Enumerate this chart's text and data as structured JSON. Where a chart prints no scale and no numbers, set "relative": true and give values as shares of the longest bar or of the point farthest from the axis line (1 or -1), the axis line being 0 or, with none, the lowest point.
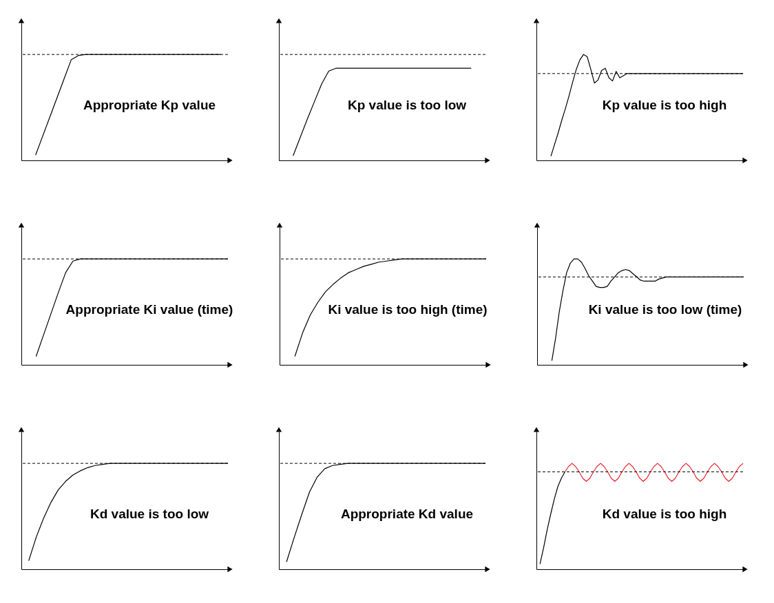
{
  "chart_data": [
    {
      "type": "line",
      "relative": true,
      "annotations": [
        "Appropriate Kp value"
      ],
      "ref_lines": [
        {
          "axis": "y",
          "value": 1,
          "line_style": "dashed",
          "color": "#000000"
        }
      ],
      "categories": [
        null,
        null,
        null,
        null,
        null,
        null,
        null,
        null,
        null,
        null,
        null,
        null,
        null,
        null,
        null,
        null,
        null,
        null,
        null,
        null,
        null,
        null,
        null,
        null,
        null,
        null,
        null,
        null,
        null,
        null
      ],
      "series": [
        {
          "color": "#000000",
          "values": [
            null,
            null,
            0.05,
            0.23,
            0.41,
            0.59,
            0.77,
            0.95,
            0.99,
            1,
            1,
            1,
            1,
            1,
            1,
            1,
            1,
            1,
            1,
            1,
            1,
            1,
            1,
            1,
            1,
            1,
            1,
            1,
            1,
            null
          ]
        }
      ]
    },
    {
      "type": "line",
      "relative": true,
      "annotations": [
        "Kp value is too low"
      ],
      "ref_lines": [
        {
          "axis": "y",
          "value": 1.15,
          "line_style": "dashed",
          "color": "#000000"
        }
      ],
      "categories": [
        null,
        null,
        null,
        null,
        null,
        null,
        null,
        null,
        null,
        null,
        null,
        null,
        null,
        null,
        null,
        null,
        null,
        null,
        null,
        null,
        null,
        null,
        null,
        null,
        null,
        null,
        null,
        null,
        null,
        null
      ],
      "series": [
        {
          "color": "#000000",
          "values": [
            null,
            null,
            0.05,
            0.25,
            0.45,
            0.64,
            0.83,
            0.97,
            1,
            1,
            1,
            1,
            1,
            1,
            1,
            1,
            1,
            1,
            1,
            1,
            1,
            1,
            1,
            1,
            1,
            1,
            1,
            1,
            null,
            null
          ]
        }
      ]
    },
    {
      "type": "line",
      "relative": true,
      "annotations": [
        "Kp value is too high"
      ],
      "ref_lines": [
        {
          "axis": "y",
          "value": 0.82,
          "line_style": "dashed",
          "color": "#000000"
        }
      ],
      "categories": [
        null,
        null,
        null,
        null,
        null,
        null,
        null,
        null,
        null,
        null,
        null,
        null,
        null,
        null,
        null,
        null,
        null,
        null,
        null,
        null,
        null,
        null,
        null,
        null,
        null,
        null,
        null,
        null,
        null,
        null,
        null,
        null,
        null,
        null,
        null,
        null,
        null,
        null,
        null,
        null,
        null,
        null,
        null,
        null,
        null,
        null,
        null,
        null,
        null,
        null,
        null,
        null,
        null,
        null,
        null,
        null,
        null,
        null
      ],
      "series": [
        {
          "color": "#000000",
          "values": [
            null,
            null,
            null,
            null,
            0.04,
            0.15,
            0.26,
            0.38,
            0.49,
            0.61,
            0.74,
            0.86,
            0.95,
            1,
            0.98,
            0.86,
            0.73,
            0.76,
            0.85,
            0.87,
            0.78,
            0.75,
            0.84,
            0.78,
            0.8,
            0.82,
            0.82,
            0.82,
            0.82,
            0.82,
            0.82,
            0.82,
            0.82,
            0.82,
            0.82,
            0.82,
            0.82,
            0.82,
            0.82,
            0.82,
            0.82,
            0.82,
            0.82,
            0.82,
            0.82,
            0.82,
            0.82,
            0.82,
            0.82,
            0.82,
            0.82,
            0.82,
            0.82,
            0.82,
            0.82,
            0.82,
            0.82,
            0.82
          ]
        }
      ]
    },
    {
      "type": "line",
      "relative": true,
      "annotations": [
        "Appropriate Ki value (time)"
      ],
      "ref_lines": [
        {
          "axis": "y",
          "value": 1,
          "line_style": "dashed",
          "color": "#000000"
        }
      ],
      "categories": [
        null,
        null,
        null,
        null,
        null,
        null,
        null,
        null,
        null,
        null,
        null,
        null,
        null,
        null,
        null,
        null,
        null,
        null,
        null,
        null,
        null,
        null,
        null,
        null,
        null,
        null,
        null,
        null,
        null
      ],
      "series": [
        {
          "color": "#000000",
          "values": [
            null,
            null,
            0.08,
            0.28,
            0.48,
            0.68,
            0.87,
            0.98,
            1,
            1,
            1,
            1,
            1,
            1,
            1,
            1,
            1,
            1,
            1,
            1,
            1,
            1,
            1,
            1,
            1,
            1,
            1,
            1,
            1
          ]
        }
      ]
    },
    {
      "type": "line",
      "relative": true,
      "annotations": [
        "Ki value is too high (time)"
      ],
      "ref_lines": [
        {
          "axis": "y",
          "value": 1,
          "line_style": "dashed",
          "color": "#000000"
        }
      ],
      "categories": [
        null,
        null,
        null,
        null,
        null,
        null,
        null,
        null,
        null,
        null,
        null,
        null,
        null,
        null,
        null,
        null,
        null,
        null,
        null,
        null,
        null,
        null,
        null,
        null,
        null,
        null,
        null,
        null
      ],
      "series": [
        {
          "color": "#000000",
          "values": [
            null,
            null,
            0.08,
            0.3,
            0.47,
            0.59,
            0.69,
            0.76,
            0.82,
            0.87,
            0.9,
            0.93,
            0.95,
            0.97,
            0.98,
            0.99,
            1,
            1,
            1,
            1,
            1,
            1,
            1,
            1,
            1,
            1,
            1,
            1
          ]
        }
      ]
    },
    {
      "type": "line",
      "relative": true,
      "annotations": [
        "Ki value is too low (time)"
      ],
      "ref_lines": [
        {
          "axis": "y",
          "value": 0.83,
          "line_style": "dashed",
          "color": "#000000"
        }
      ],
      "categories": [
        null,
        null,
        null,
        null,
        null,
        null,
        null,
        null,
        null,
        null,
        null,
        null,
        null,
        null,
        null,
        null,
        null,
        null,
        null,
        null,
        null,
        null,
        null,
        null,
        null,
        null,
        null,
        null,
        null,
        null,
        null,
        null,
        null,
        null,
        null,
        null,
        null,
        null,
        null,
        null,
        null,
        null,
        null,
        null,
        null,
        null,
        null,
        null,
        null,
        null,
        null,
        null,
        null,
        null,
        null,
        null,
        null
      ],
      "series": [
        {
          "color": "#000000",
          "values": [
            null,
            null,
            null,
            null,
            0.04,
            0.25,
            0.5,
            0.7,
            0.87,
            0.96,
            1,
            1,
            0.97,
            0.91,
            0.84,
            0.79,
            0.74,
            0.73,
            0.73,
            0.74,
            0.79,
            0.83,
            0.87,
            0.89,
            0.9,
            0.89,
            0.86,
            0.83,
            0.8,
            0.79,
            0.79,
            0.79,
            0.79,
            0.81,
            0.82,
            0.83,
            0.83,
            0.83,
            0.83,
            0.83,
            0.83,
            0.83,
            0.83,
            0.83,
            0.83,
            0.83,
            0.83,
            0.83,
            0.83,
            0.83,
            0.83,
            0.83,
            0.83,
            0.83,
            0.83,
            0.83,
            0.83
          ]
        }
      ]
    },
    {
      "type": "line",
      "relative": true,
      "annotations": [
        "Kd value is too low"
      ],
      "ref_lines": [
        {
          "axis": "y",
          "value": 1,
          "line_style": "dashed",
          "color": "#000000"
        }
      ],
      "categories": [
        null,
        null,
        null,
        null,
        null,
        null,
        null,
        null,
        null,
        null,
        null,
        null,
        null,
        null,
        null,
        null,
        null,
        null,
        null,
        null,
        null,
        null,
        null,
        null,
        null,
        null,
        null,
        null,
        null
      ],
      "series": [
        {
          "color": "#000000",
          "values": [
            null,
            0.08,
            0.3,
            0.48,
            0.63,
            0.75,
            0.83,
            0.89,
            0.93,
            0.96,
            0.98,
            0.99,
            1,
            1,
            1,
            1,
            1,
            1,
            1,
            1,
            1,
            1,
            1,
            1,
            1,
            1,
            1,
            1,
            1
          ]
        }
      ]
    },
    {
      "type": "line",
      "relative": true,
      "annotations": [
        "Appropriate Kd value"
      ],
      "ref_lines": [
        {
          "axis": "y",
          "value": 1,
          "line_style": "dashed",
          "color": "#000000"
        }
      ],
      "categories": [
        null,
        null,
        null,
        null,
        null,
        null,
        null,
        null,
        null,
        null,
        null,
        null,
        null,
        null,
        null,
        null,
        null,
        null,
        null,
        null,
        null,
        null,
        null,
        null,
        null,
        null,
        null,
        null
      ],
      "series": [
        {
          "color": "#000000",
          "values": [
            null,
            0.07,
            0.3,
            0.52,
            0.73,
            0.87,
            0.95,
            0.98,
            0.99,
            1,
            1,
            1,
            1,
            1,
            1,
            1,
            1,
            1,
            1,
            1,
            1,
            1,
            1,
            1,
            1,
            1,
            1,
            1
          ]
        }
      ]
    },
    {
      "type": "line",
      "relative": true,
      "annotations": [
        "Kd value is too high"
      ],
      "ref_lines": [
        {
          "axis": "y",
          "value": 0.92,
          "line_style": "dashed",
          "color": "#000000"
        }
      ],
      "categories": [
        null,
        null,
        null,
        null,
        null,
        null,
        null,
        null,
        null,
        null,
        null,
        null,
        null,
        null,
        null,
        null,
        null,
        null,
        null,
        null,
        null,
        null,
        null,
        null,
        null,
        null,
        null,
        null,
        null,
        null,
        null,
        null,
        null,
        null,
        null,
        null,
        null,
        null,
        null,
        null,
        null,
        null,
        null,
        null,
        null,
        null,
        null,
        null,
        null,
        null,
        null,
        null,
        null,
        null,
        null,
        null,
        null,
        null,
        null
      ],
      "series": [
        {
          "color": "#000000",
          "values": [
            null,
            0.05,
            0.2,
            0.37,
            0.52,
            0.66,
            0.78,
            0.86,
            0.92,
            null,
            null,
            null,
            null,
            null,
            null,
            null,
            null,
            null,
            null,
            null,
            null,
            null,
            null,
            null,
            null,
            null,
            null,
            null,
            null,
            null,
            null,
            null,
            null,
            null,
            null,
            null,
            null,
            null,
            null,
            null,
            null,
            null,
            null,
            null,
            null,
            null,
            null,
            null,
            null,
            null,
            null,
            null,
            null,
            null,
            null,
            null,
            null,
            null,
            null
          ]
        },
        {
          "color": "#e8202a",
          "values": [
            null,
            null,
            null,
            null,
            null,
            null,
            null,
            null,
            0.92,
            0.97,
            1,
            0.97,
            0.92,
            0.86,
            0.83,
            0.86,
            0.92,
            0.97,
            1,
            0.97,
            0.92,
            0.86,
            0.83,
            0.86,
            0.92,
            0.97,
            1,
            0.97,
            0.92,
            0.86,
            0.83,
            0.86,
            0.92,
            0.97,
            1,
            0.97,
            0.92,
            0.86,
            0.83,
            0.86,
            0.92,
            0.97,
            1,
            0.97,
            0.92,
            0.86,
            0.83,
            0.86,
            0.92,
            0.97,
            1,
            0.97,
            0.92,
            0.86,
            0.83,
            0.86,
            0.92,
            0.97,
            1
          ]
        }
      ]
    }
  ]
}
